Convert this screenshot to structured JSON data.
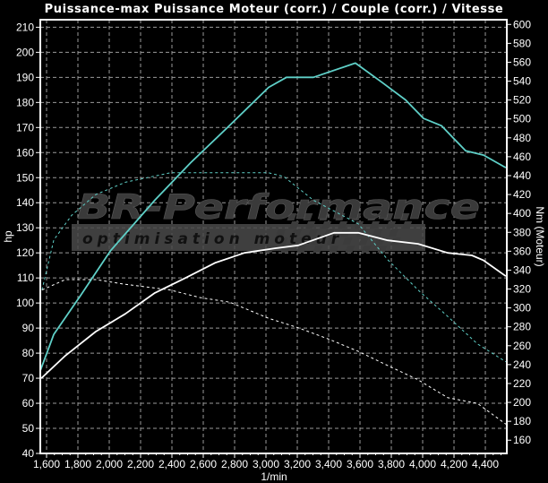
{
  "chart_data": {
    "type": "line",
    "title": "Puissance-max Puissance Moteur (corr.) / Couple (corr.) / Vitesse",
    "xlabel": "1/min",
    "ylabel_left": "hp",
    "ylabel_right": "Nm (Moteur)",
    "xlim": [
      1560,
      4537
    ],
    "ylim_left": [
      40,
      213
    ],
    "ylim_right": [
      146,
      605
    ],
    "x_ticks": [
      1600,
      1800,
      2000,
      2200,
      2400,
      2600,
      2800,
      3000,
      3200,
      3400,
      3600,
      3800,
      4000,
      4200,
      4400
    ],
    "x_tick_labels": [
      "1,600",
      "1,800",
      "2,000",
      "2,200",
      "2,400",
      "2,600",
      "2,800",
      "3,000",
      "3,200",
      "3,400",
      "3,600",
      "3,800",
      "4,000",
      "4,200",
      "4,400"
    ],
    "y_ticks_left": [
      40,
      50,
      60,
      70,
      80,
      90,
      100,
      110,
      120,
      130,
      140,
      150,
      160,
      170,
      180,
      190,
      200,
      210
    ],
    "y_ticks_right": [
      160,
      180,
      200,
      220,
      240,
      260,
      280,
      300,
      320,
      340,
      360,
      380,
      400,
      420,
      440,
      460,
      480,
      500,
      520,
      540,
      560,
      580,
      600
    ],
    "grid": true,
    "background": "#000000",
    "series": [
      {
        "axis": "left",
        "color": "#5fd0c8",
        "style": "solid",
        "x": [
          1560,
          1646,
          1817,
          2006,
          2291,
          2520,
          2771,
          3017,
          3131,
          3303,
          3571,
          3743,
          3891,
          4006,
          4120,
          4274,
          4389,
          4531
        ],
        "y": [
          73,
          87.5,
          103,
          120.7,
          141,
          156,
          171,
          186,
          190,
          190,
          195.7,
          187.9,
          181,
          173.6,
          170.7,
          160.7,
          159,
          154
        ]
      },
      {
        "axis": "right",
        "color": "#5fd0c8",
        "style": "dashed",
        "x": [
          1571,
          1646,
          1760,
          1914,
          2103,
          2389,
          3017,
          3114,
          3303,
          3589,
          3777,
          3971,
          4160,
          4349,
          4531
        ],
        "y": [
          319,
          372,
          398,
          420,
          433,
          443,
          443,
          439,
          414,
          389,
          351,
          319,
          291,
          262,
          243
        ]
      },
      {
        "axis": "left",
        "color": "#ffffff",
        "style": "solid",
        "x": [
          1566,
          1720,
          1914,
          2103,
          2291,
          2486,
          2674,
          2863,
          3057,
          3206,
          3434,
          3589,
          3777,
          3971,
          4160,
          4314,
          4389,
          4531
        ],
        "y": [
          70,
          79,
          88.6,
          95.7,
          104,
          110,
          116,
          120,
          121.8,
          123,
          128,
          128,
          125,
          123.6,
          120,
          119,
          117,
          110.7
        ]
      },
      {
        "axis": "right",
        "color": "#ffffff",
        "style": "dashed",
        "x": [
          1571,
          1720,
          1914,
          2103,
          2389,
          2577,
          2771,
          3017,
          3206,
          3400,
          3589,
          3777,
          3971,
          4160,
          4349,
          4531
        ],
        "y": [
          319,
          330,
          330,
          325,
          319,
          311,
          306,
          289,
          279,
          267,
          254,
          239,
          224,
          205,
          199,
          177
        ]
      }
    ]
  },
  "watermark": {
    "brand": "BR-Performance",
    "tagline": "optimisation moteur"
  }
}
